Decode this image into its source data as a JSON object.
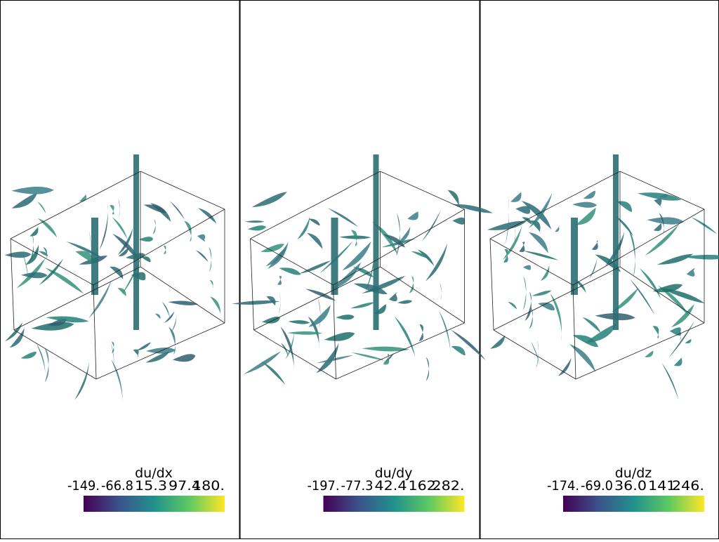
{
  "panels": [
    {
      "colorbar": {
        "title": "du/dx",
        "ticks": [
          "-149.",
          "-66.8",
          "15.3",
          "97.4",
          "180."
        ]
      }
    },
    {
      "colorbar": {
        "title": "du/dy",
        "ticks": [
          "-197.",
          "-77.3",
          "42.4",
          "162.",
          "282."
        ]
      }
    },
    {
      "colorbar": {
        "title": "du/dz",
        "ticks": [
          "-174.",
          "-69.0",
          "36.0",
          "141.",
          "246."
        ]
      }
    }
  ]
}
